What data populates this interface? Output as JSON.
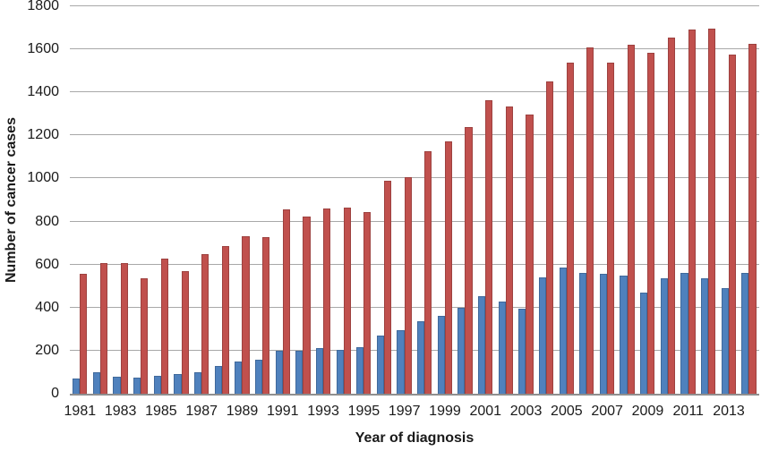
{
  "colors": {
    "background": "#ffffff",
    "gridline": "#a8a8a8",
    "axis_line": "#8f8f8f",
    "text": "#1a1a1a",
    "series_blue": "#4F81BD",
    "series_red": "#C0504D"
  },
  "chart_data": {
    "type": "bar",
    "title": "",
    "xlabel": "Year of diagnosis",
    "ylabel": "Number of cancer cases",
    "ylim": [
      0,
      1800
    ],
    "ytick_step": 200,
    "ytick_labels": [
      "0",
      "200",
      "400",
      "600",
      "800",
      "1000",
      "1200",
      "1400",
      "1600",
      "1800"
    ],
    "grid": "horizontal",
    "legend": "none",
    "categories": [
      "1981",
      "1982",
      "1983",
      "1984",
      "1985",
      "1986",
      "1987",
      "1988",
      "1989",
      "1990",
      "1991",
      "1992",
      "1993",
      "1994",
      "1995",
      "1996",
      "1997",
      "1998",
      "1999",
      "2000",
      "2001",
      "2002",
      "2003",
      "2004",
      "2005",
      "2006",
      "2007",
      "2008",
      "2009",
      "2010",
      "2011",
      "2012",
      "2013",
      "2014"
    ],
    "xtick_labels": [
      "1981",
      "1983",
      "1985",
      "1987",
      "1989",
      "1991",
      "1993",
      "1995",
      "1997",
      "1999",
      "2001",
      "2003",
      "2005",
      "2007",
      "2009",
      "2011",
      "2013"
    ],
    "series": [
      {
        "name": "blue-series",
        "color": "#4F81BD",
        "values": [
          70,
          100,
          78,
          73,
          85,
          92,
          100,
          128,
          150,
          158,
          200,
          200,
          212,
          205,
          215,
          270,
          295,
          335,
          360,
          400,
          455,
          430,
          395,
          542,
          586,
          563,
          557,
          548,
          470,
          535,
          560,
          535,
          490,
          560
        ]
      },
      {
        "name": "red-series",
        "color": "#C0504D",
        "values": [
          557,
          607,
          605,
          537,
          627,
          570,
          650,
          687,
          730,
          726,
          857,
          825,
          860,
          865,
          845,
          990,
          1005,
          1128,
          1172,
          1240,
          1365,
          1333,
          1295,
          1452,
          1538,
          1608,
          1539,
          1620,
          1585,
          1655,
          1692,
          1695,
          1577,
          1625
        ]
      }
    ]
  }
}
